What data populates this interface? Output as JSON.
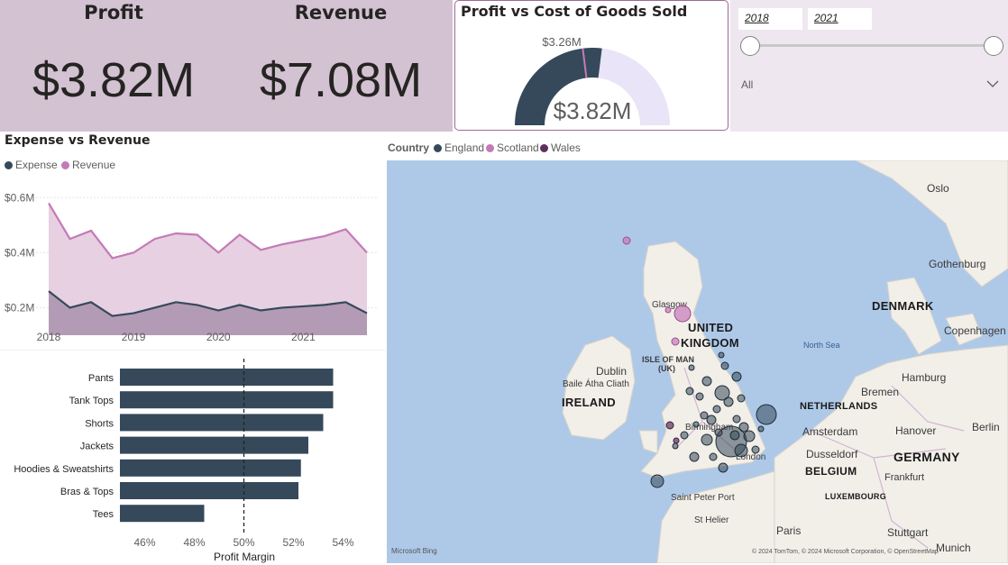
{
  "kpis": {
    "profit_title": "Profit",
    "profit_value": "$3.82M",
    "revenue_title": "Revenue",
    "revenue_value": "$7.08M"
  },
  "gauge": {
    "title": "Profit vs Cost of Goods Sold",
    "target_label": "$3.26M",
    "value_label": "$3.82M",
    "value": 3.82,
    "target": 3.26,
    "max": 7.08,
    "colors": {
      "value": "#35495a",
      "background": "#e9e4f7",
      "target": "#c47ab6"
    }
  },
  "slicer": {
    "start_date": "2018",
    "end_date": "2021",
    "range_fraction": [
      0,
      1
    ],
    "dropdown_value": "All"
  },
  "colors": {
    "kpi_background": "#d3c2d2",
    "expense": "#35495a",
    "revenue": "#c47ab6",
    "revenue_fill": "#e6d0e2",
    "bar": "#35495a",
    "england": "#35495a",
    "scotland": "#c47ab6",
    "wales": "#5e2f5d"
  },
  "chart_data": [
    {
      "type": "area",
      "title": "Expense vs Revenue",
      "legend_position": "top-left",
      "x_ticks": [
        "2018",
        "2019",
        "2020",
        "2021"
      ],
      "y_ticks": [
        "$0.2M",
        "$0.4M",
        "$0.6M"
      ],
      "ylim": [
        0.1,
        0.65
      ],
      "x": [
        "2018-01",
        "2018-04",
        "2018-07",
        "2018-10",
        "2019-01",
        "2019-04",
        "2019-07",
        "2019-10",
        "2020-01",
        "2020-04",
        "2020-07",
        "2020-10",
        "2021-01",
        "2021-04",
        "2021-07",
        "2021-10"
      ],
      "series": [
        {
          "name": "Expense",
          "values": [
            0.26,
            0.2,
            0.22,
            0.17,
            0.18,
            0.2,
            0.22,
            0.21,
            0.19,
            0.21,
            0.19,
            0.2,
            0.205,
            0.21,
            0.22,
            0.18
          ]
        },
        {
          "name": "Revenue",
          "values": [
            0.58,
            0.45,
            0.48,
            0.38,
            0.4,
            0.45,
            0.47,
            0.465,
            0.4,
            0.465,
            0.41,
            0.43,
            0.445,
            0.46,
            0.485,
            0.4
          ]
        }
      ]
    },
    {
      "type": "bar",
      "orientation": "horizontal",
      "xlabel": "Profit Margin",
      "x_ticks": [
        "46%",
        "48%",
        "50%",
        "52%",
        "54%"
      ],
      "xlim": [
        45,
        55
      ],
      "reference_line": 50,
      "categories": [
        "Pants",
        "Tank Tops",
        "Shorts",
        "Jackets",
        "Hoodies & Sweatshirts",
        "Bras & Tops",
        "Tees"
      ],
      "values": [
        53.6,
        53.6,
        53.2,
        52.6,
        52.3,
        52.2,
        48.4
      ]
    }
  ],
  "map": {
    "legend_title": "Country",
    "legend_items": [
      {
        "name": "England",
        "color": "#35495a"
      },
      {
        "name": "Scotland",
        "color": "#c47ab6"
      },
      {
        "name": "Wales",
        "color": "#5e2f5d"
      }
    ],
    "labels": {
      "uk_1": "UNITED",
      "uk_2": "KINGDOM",
      "denmark": "DENMARK",
      "ireland": "IRELAND",
      "netherlands": "NETHERLANDS",
      "belgium": "BELGIUM",
      "germany": "GERMANY",
      "luxembourg": "LUXEMBOURG",
      "isle_of_man_1": "ISLE OF MAN",
      "isle_of_man_2": "(UK)",
      "north_sea": "North Sea",
      "oslo": "Oslo",
      "gothenburg": "Gothenburg",
      "copenhagen": "Copenhagen",
      "hamburg": "Hamburg",
      "bremen": "Bremen",
      "berlin": "Berlin",
      "hanover": "Hanover",
      "amsterdam": "Amsterdam",
      "dusseldorf": "Dusseldorf",
      "frankfurt": "Frankfurt",
      "stuttgart": "Stuttgart",
      "munich": "Munich",
      "paris": "Paris",
      "dublin": "Dublin",
      "baile_atha_cliath": "Baile Átha Cliath",
      "glasgow": "Glasgow",
      "birmingham": "Birmingham",
      "london": "London",
      "saint_peter_port": "Saint Peter Port",
      "st_helier": "St Helier"
    },
    "attribution": "© 2024 TomTom, © 2024 Microsoft Corporation, © OpenStreetMap",
    "bing": "Microsoft Bing"
  }
}
